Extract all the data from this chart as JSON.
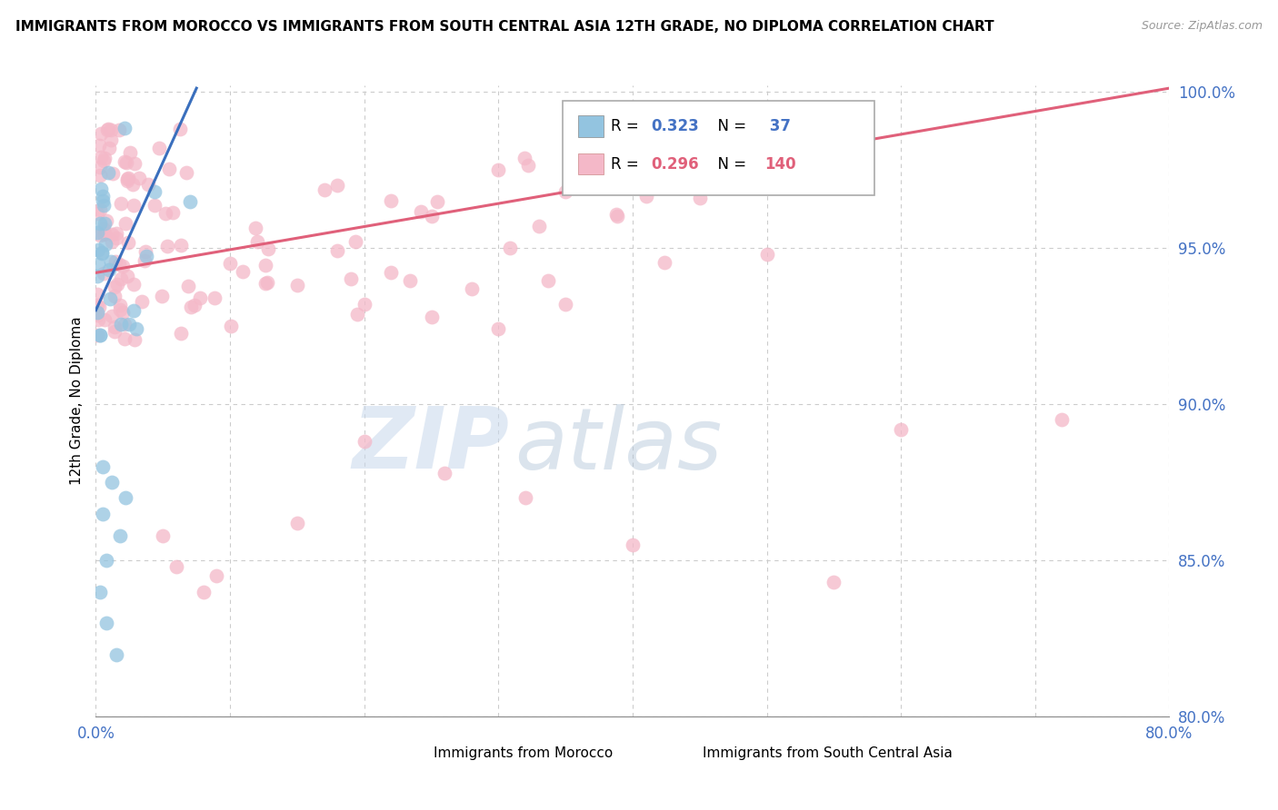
{
  "title": "IMMIGRANTS FROM MOROCCO VS IMMIGRANTS FROM SOUTH CENTRAL ASIA 12TH GRADE, NO DIPLOMA CORRELATION CHART",
  "source": "Source: ZipAtlas.com",
  "ylabel_label": "12th Grade, No Diploma",
  "legend_blue_label": "Immigrants from Morocco",
  "legend_pink_label": "Immigrants from South Central Asia",
  "R_blue": 0.323,
  "N_blue": 37,
  "R_pink": 0.296,
  "N_pink": 140,
  "blue_color": "#93c4e0",
  "pink_color": "#f4b8c8",
  "blue_line_color": "#3a6fbd",
  "pink_line_color": "#e0607a",
  "watermark_zip": "ZIP",
  "watermark_atlas": "atlas",
  "xmin": 0.0,
  "xmax": 0.8,
  "ymin": 0.8,
  "ymax": 1.002,
  "yticks": [
    0.8,
    0.85,
    0.9,
    0.95,
    1.0
  ],
  "xticks": [
    0.0,
    0.1,
    0.2,
    0.3,
    0.4,
    0.5,
    0.6,
    0.7,
    0.8
  ],
  "blue_line_x0": 0.0,
  "blue_line_y0": 0.93,
  "blue_line_x1": 0.075,
  "blue_line_y1": 1.001,
  "pink_line_x0": 0.0,
  "pink_line_y0": 0.942,
  "pink_line_x1": 0.8,
  "pink_line_y1": 1.001
}
